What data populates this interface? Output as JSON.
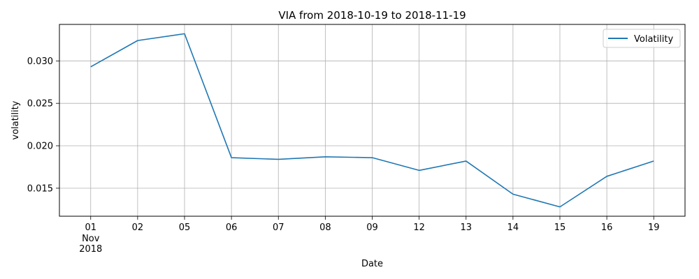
{
  "chart_data": {
    "type": "line",
    "title": "VIA from 2018-10-19 to 2018-11-19",
    "xlabel": "Date",
    "ylabel": "volatility",
    "x": [
      "2018-11-01",
      "2018-11-02",
      "2018-11-05",
      "2018-11-06",
      "2018-11-07",
      "2018-11-08",
      "2018-11-09",
      "2018-11-12",
      "2018-11-13",
      "2018-11-14",
      "2018-11-15",
      "2018-11-16",
      "2018-11-19"
    ],
    "x_tick_labels": [
      "01",
      "02",
      "05",
      "06",
      "07",
      "08",
      "09",
      "12",
      "13",
      "14",
      "15",
      "16",
      "19"
    ],
    "x_tick_sublabels": [
      "Nov",
      "2018"
    ],
    "series": [
      {
        "name": "Volatility",
        "color": "#1f77b4",
        "values": [
          0.0293,
          0.0324,
          0.0332,
          0.0186,
          0.0184,
          0.0187,
          0.0186,
          0.0171,
          0.0182,
          0.0143,
          0.0128,
          0.0164,
          0.0182
        ]
      }
    ],
    "yticks": [
      0.015,
      0.02,
      0.025,
      0.03
    ],
    "ytick_labels": [
      "0.015",
      "0.020",
      "0.025",
      "0.030"
    ],
    "ylim": [
      0.0117,
      0.0343
    ],
    "grid": true,
    "legend_position": "top-right"
  }
}
